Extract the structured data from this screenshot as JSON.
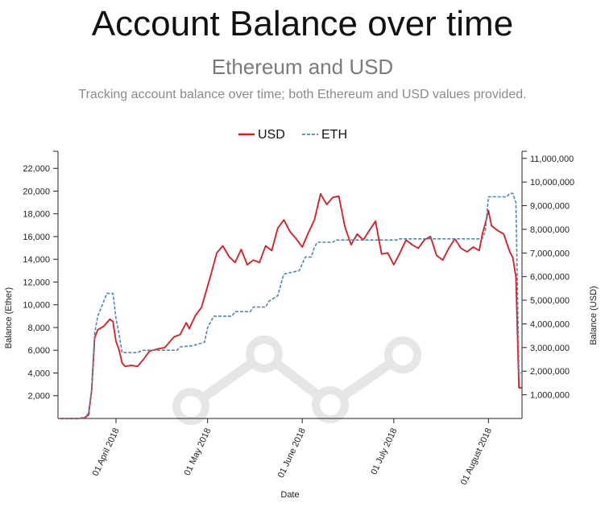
{
  "header": {
    "title": "Account Balance over time",
    "subtitle": "Ethereum and USD",
    "description": "Tracking account balance over time; both Ethereum and USD values provided."
  },
  "colors": {
    "usd": "#e8151b",
    "eth": "#4f86b8",
    "watermark": "#e6e6e6"
  },
  "watermark_icon": "line-chart-logo-icon",
  "chart_data": {
    "type": "line",
    "x_type": "date",
    "xlabel": "Date",
    "ylabel_left": "Balance (Ether)",
    "ylabel_right": "Balance (USD)",
    "legend_position": "top-center",
    "grid": false,
    "xlim": [
      "2018-03-13",
      "2018-08-12"
    ],
    "ylim_left": [
      0,
      23500
    ],
    "ylim_right": [
      0,
      11300000
    ],
    "yticks_left": [
      2000,
      4000,
      6000,
      8000,
      10000,
      12000,
      14000,
      16000,
      18000,
      20000,
      22000
    ],
    "yticks_left_labels": [
      "2,000",
      "4,000",
      "6,000",
      "8,000",
      "10,000",
      "12,000",
      "14,000",
      "16,000",
      "18,000",
      "20,000",
      "22,000"
    ],
    "yticks_right": [
      1000000,
      2000000,
      3000000,
      4000000,
      5000000,
      6000000,
      7000000,
      8000000,
      9000000,
      10000000,
      11000000
    ],
    "yticks_right_labels": [
      "1,000,000",
      "2,000,000",
      "3,000,000",
      "4,000,000",
      "5,000,000",
      "6,000,000",
      "7,000,000",
      "8,000,000",
      "9,000,000",
      "10,000,000",
      "11,000,000"
    ],
    "xticks": [
      "2018-04-01",
      "2018-05-01",
      "2018-06-01",
      "2018-07-01",
      "2018-08-01"
    ],
    "xtick_labels": [
      "01 April 2018",
      "01 May 2018",
      "01 June 2018",
      "01 July 2018",
      "01 August 2018"
    ],
    "series": [
      {
        "name": "USD",
        "axis": "right",
        "style": "solid",
        "points": [
          [
            "2018-03-13",
            0
          ],
          [
            "2018-03-20",
            0
          ],
          [
            "2018-03-22",
            50000
          ],
          [
            "2018-03-23",
            150000
          ],
          [
            "2018-03-24",
            1150000
          ],
          [
            "2018-03-25",
            3400000
          ],
          [
            "2018-03-26",
            3750000
          ],
          [
            "2018-03-28",
            3900000
          ],
          [
            "2018-03-30",
            4200000
          ],
          [
            "2018-03-31",
            4100000
          ],
          [
            "2018-04-01",
            3250000
          ],
          [
            "2018-04-02",
            2900000
          ],
          [
            "2018-04-03",
            2350000
          ],
          [
            "2018-04-04",
            2200000
          ],
          [
            "2018-04-06",
            2250000
          ],
          [
            "2018-04-08",
            2200000
          ],
          [
            "2018-04-10",
            2500000
          ],
          [
            "2018-04-12",
            2850000
          ],
          [
            "2018-04-15",
            2950000
          ],
          [
            "2018-04-17",
            3000000
          ],
          [
            "2018-04-20",
            3450000
          ],
          [
            "2018-04-22",
            3550000
          ],
          [
            "2018-04-24",
            4050000
          ],
          [
            "2018-04-25",
            3800000
          ],
          [
            "2018-04-27",
            4350000
          ],
          [
            "2018-04-29",
            4700000
          ],
          [
            "2018-05-02",
            6050000
          ],
          [
            "2018-05-04",
            7000000
          ],
          [
            "2018-05-06",
            7300000
          ],
          [
            "2018-05-08",
            6850000
          ],
          [
            "2018-05-10",
            6600000
          ],
          [
            "2018-05-12",
            7150000
          ],
          [
            "2018-05-14",
            6500000
          ],
          [
            "2018-05-16",
            6700000
          ],
          [
            "2018-05-18",
            6600000
          ],
          [
            "2018-05-20",
            7300000
          ],
          [
            "2018-05-22",
            7100000
          ],
          [
            "2018-05-24",
            8050000
          ],
          [
            "2018-05-26",
            8400000
          ],
          [
            "2018-05-28",
            7900000
          ],
          [
            "2018-05-30",
            7600000
          ],
          [
            "2018-06-01",
            7250000
          ],
          [
            "2018-06-03",
            7850000
          ],
          [
            "2018-06-05",
            8400000
          ],
          [
            "2018-06-07",
            9500000
          ],
          [
            "2018-06-09",
            9050000
          ],
          [
            "2018-06-11",
            9350000
          ],
          [
            "2018-06-13",
            9400000
          ],
          [
            "2018-06-15",
            8100000
          ],
          [
            "2018-06-17",
            7350000
          ],
          [
            "2018-06-19",
            7800000
          ],
          [
            "2018-06-21",
            7550000
          ],
          [
            "2018-06-23",
            7950000
          ],
          [
            "2018-06-25",
            8350000
          ],
          [
            "2018-06-27",
            6950000
          ],
          [
            "2018-06-29",
            7000000
          ],
          [
            "2018-07-01",
            6500000
          ],
          [
            "2018-07-03",
            7000000
          ],
          [
            "2018-07-05",
            7550000
          ],
          [
            "2018-07-07",
            7350000
          ],
          [
            "2018-07-09",
            7200000
          ],
          [
            "2018-07-11",
            7550000
          ],
          [
            "2018-07-13",
            7700000
          ],
          [
            "2018-07-15",
            6900000
          ],
          [
            "2018-07-17",
            6700000
          ],
          [
            "2018-07-19",
            7200000
          ],
          [
            "2018-07-21",
            7600000
          ],
          [
            "2018-07-23",
            7200000
          ],
          [
            "2018-07-25",
            7050000
          ],
          [
            "2018-07-27",
            7250000
          ],
          [
            "2018-07-29",
            7100000
          ],
          [
            "2018-07-30",
            7800000
          ],
          [
            "2018-07-31",
            8250000
          ],
          [
            "2018-08-01",
            8800000
          ],
          [
            "2018-08-02",
            8150000
          ],
          [
            "2018-08-04",
            7950000
          ],
          [
            "2018-08-06",
            7800000
          ],
          [
            "2018-08-08",
            7050000
          ],
          [
            "2018-08-09",
            6800000
          ],
          [
            "2018-08-10",
            6000000
          ],
          [
            "2018-08-11",
            1300000
          ],
          [
            "2018-08-12",
            1300000
          ]
        ]
      },
      {
        "name": "ETH",
        "axis": "left",
        "style": "dashed",
        "points": [
          [
            "2018-03-13",
            0
          ],
          [
            "2018-03-20",
            0
          ],
          [
            "2018-03-22",
            100
          ],
          [
            "2018-03-23",
            500
          ],
          [
            "2018-03-24",
            2500
          ],
          [
            "2018-03-25",
            7500
          ],
          [
            "2018-03-26",
            9000
          ],
          [
            "2018-03-28",
            10300
          ],
          [
            "2018-03-29",
            11000
          ],
          [
            "2018-03-31",
            11000
          ],
          [
            "2018-04-01",
            8800
          ],
          [
            "2018-04-02",
            7400
          ],
          [
            "2018-04-03",
            5800
          ],
          [
            "2018-04-08",
            5800
          ],
          [
            "2018-04-10",
            6000
          ],
          [
            "2018-04-21",
            6000
          ],
          [
            "2018-04-22",
            6300
          ],
          [
            "2018-04-26",
            6400
          ],
          [
            "2018-04-30",
            6700
          ],
          [
            "2018-05-01",
            8000
          ],
          [
            "2018-05-03",
            9000
          ],
          [
            "2018-05-09",
            9000
          ],
          [
            "2018-05-10",
            9400
          ],
          [
            "2018-05-15",
            9400
          ],
          [
            "2018-05-16",
            9800
          ],
          [
            "2018-05-20",
            9800
          ],
          [
            "2018-05-21",
            10300
          ],
          [
            "2018-05-24",
            10800
          ],
          [
            "2018-05-25",
            11800
          ],
          [
            "2018-05-26",
            12700
          ],
          [
            "2018-05-31",
            13000
          ],
          [
            "2018-06-01",
            13600
          ],
          [
            "2018-06-02",
            14200
          ],
          [
            "2018-06-04",
            14200
          ],
          [
            "2018-06-05",
            15100
          ],
          [
            "2018-06-06",
            15500
          ],
          [
            "2018-06-11",
            15500
          ],
          [
            "2018-06-12",
            15700
          ],
          [
            "2018-07-02",
            15700
          ],
          [
            "2018-07-03",
            15800
          ],
          [
            "2018-07-30",
            15800
          ],
          [
            "2018-07-31",
            16500
          ],
          [
            "2018-08-01",
            19500
          ],
          [
            "2018-08-07",
            19500
          ],
          [
            "2018-08-08",
            19800
          ],
          [
            "2018-08-09",
            19800
          ],
          [
            "2018-08-10",
            19000
          ],
          [
            "2018-08-11",
            4000
          ],
          [
            "2018-08-12",
            4000
          ]
        ]
      }
    ]
  }
}
